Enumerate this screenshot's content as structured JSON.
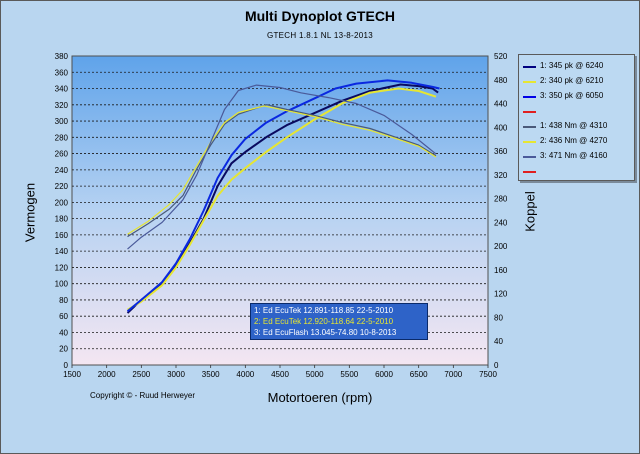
{
  "chart_data": {
    "type": "line",
    "title": "Multi Dynoplot GTECH",
    "subtitle": "GTECH 1.8.1 NL     13-8-2013",
    "xlabel": "Motortoeren (rpm)",
    "ylabel_left": "Vermogen",
    "ylabel_right": "Koppel",
    "xlim": [
      1500,
      7500
    ],
    "ylim_left": [
      0,
      380
    ],
    "ylim_right": [
      0,
      520
    ],
    "x_ticks": [
      "1500",
      "2000",
      "2500",
      "3000",
      "3500",
      "4000",
      "4500",
      "5000",
      "5500",
      "6000",
      "6500",
      "7000",
      "7500"
    ],
    "y_left_ticks": [
      "0",
      "20",
      "40",
      "60",
      "80",
      "100",
      "120",
      "140",
      "160",
      "180",
      "200",
      "220",
      "240",
      "260",
      "280",
      "300",
      "320",
      "340",
      "360",
      "380"
    ],
    "y_right_ticks": [
      "0",
      "40",
      "80",
      "120",
      "160",
      "200",
      "240",
      "280",
      "320",
      "360",
      "400",
      "440",
      "480",
      "520"
    ],
    "grid": true,
    "legend_position": "right",
    "legend": [
      {
        "label": "1: 345 pk @ 6240",
        "color": "#000080"
      },
      {
        "label": "2: 340 pk @ 6210",
        "color": "#e6e632"
      },
      {
        "label": "3: 350 pk @ 6050",
        "color": "#0000e6"
      },
      {
        "label": "",
        "color": "#e02020"
      },
      {
        "label": "1: 438 Nm @ 4310",
        "color": "#4a5a7a"
      },
      {
        "label": "2: 436 Nm @ 4270",
        "color": "#e6e632"
      },
      {
        "label": "3: 471 Nm @ 4160",
        "color": "#4a5a9a"
      },
      {
        "label": "",
        "color": "#e02020"
      }
    ],
    "series": [
      {
        "axis": "left",
        "color": "#0a0a60",
        "width": 2,
        "points": [
          [
            2300,
            64
          ],
          [
            2500,
            80
          ],
          [
            2800,
            100
          ],
          [
            3000,
            122
          ],
          [
            3200,
            150
          ],
          [
            3400,
            180
          ],
          [
            3600,
            220
          ],
          [
            3800,
            248
          ],
          [
            4000,
            262
          ],
          [
            4300,
            280
          ],
          [
            4600,
            295
          ],
          [
            5000,
            310
          ],
          [
            5400,
            325
          ],
          [
            5800,
            337
          ],
          [
            6240,
            345
          ],
          [
            6500,
            343
          ],
          [
            6700,
            340
          ],
          [
            6780,
            335
          ]
        ]
      },
      {
        "axis": "left",
        "color": "#e6e632",
        "width": 2,
        "points": [
          [
            2300,
            68
          ],
          [
            2500,
            78
          ],
          [
            2800,
            98
          ],
          [
            3000,
            120
          ],
          [
            3200,
            148
          ],
          [
            3400,
            178
          ],
          [
            3600,
            208
          ],
          [
            3800,
            228
          ],
          [
            4000,
            242
          ],
          [
            4300,
            262
          ],
          [
            4600,
            280
          ],
          [
            5000,
            302
          ],
          [
            5400,
            322
          ],
          [
            5800,
            335
          ],
          [
            6210,
            340
          ],
          [
            6500,
            337
          ],
          [
            6750,
            330
          ]
        ]
      },
      {
        "axis": "left",
        "color": "#0a28e0",
        "width": 2,
        "points": [
          [
            2300,
            66
          ],
          [
            2500,
            80
          ],
          [
            2800,
            102
          ],
          [
            3000,
            125
          ],
          [
            3200,
            155
          ],
          [
            3400,
            190
          ],
          [
            3600,
            230
          ],
          [
            3800,
            258
          ],
          [
            4000,
            278
          ],
          [
            4300,
            298
          ],
          [
            4600,
            312
          ],
          [
            5000,
            328
          ],
          [
            5300,
            340
          ],
          [
            5600,
            346
          ],
          [
            6050,
            350
          ],
          [
            6400,
            347
          ],
          [
            6700,
            342
          ],
          [
            6800,
            340
          ]
        ]
      },
      {
        "axis": "right",
        "color": "#4a5a7a",
        "width": 1.2,
        "points": [
          [
            2300,
            216
          ],
          [
            2600,
            238
          ],
          [
            2900,
            262
          ],
          [
            3100,
            285
          ],
          [
            3300,
            330
          ],
          [
            3500,
            370
          ],
          [
            3700,
            405
          ],
          [
            3900,
            422
          ],
          [
            4310,
            438
          ],
          [
            4600,
            430
          ],
          [
            5000,
            420
          ],
          [
            5400,
            408
          ],
          [
            5800,
            398
          ],
          [
            6200,
            382
          ],
          [
            6500,
            370
          ],
          [
            6750,
            352
          ]
        ]
      },
      {
        "axis": "right",
        "color": "#e6e632",
        "width": 1.2,
        "points": [
          [
            2300,
            220
          ],
          [
            2600,
            242
          ],
          [
            2900,
            270
          ],
          [
            3100,
            295
          ],
          [
            3300,
            335
          ],
          [
            3500,
            375
          ],
          [
            3700,
            408
          ],
          [
            3900,
            425
          ],
          [
            4270,
            436
          ],
          [
            4600,
            428
          ],
          [
            5000,
            418
          ],
          [
            5400,
            405
          ],
          [
            5800,
            395
          ],
          [
            6200,
            380
          ],
          [
            6500,
            368
          ],
          [
            6750,
            350
          ]
        ]
      },
      {
        "axis": "right",
        "color": "#4a5a9a",
        "width": 1.2,
        "points": [
          [
            2300,
            195
          ],
          [
            2500,
            215
          ],
          [
            2800,
            240
          ],
          [
            3100,
            278
          ],
          [
            3300,
            320
          ],
          [
            3500,
            375
          ],
          [
            3700,
            430
          ],
          [
            3900,
            462
          ],
          [
            4160,
            471
          ],
          [
            4500,
            467
          ],
          [
            4800,
            458
          ],
          [
            5200,
            450
          ],
          [
            5600,
            440
          ],
          [
            6000,
            420
          ],
          [
            6400,
            388
          ],
          [
            6750,
            355
          ]
        ]
      }
    ]
  },
  "runs": [
    {
      "label": "1: Ed EcuTek   12.891-118.85  22-5-2010",
      "color": "#ffffff"
    },
    {
      "label": "2: Ed EcuTek   12.920-118.64  22-5-2010",
      "color": "#e6e632"
    },
    {
      "label": "3: Ed EcuFlash 13.045-74.80   10-8-2013",
      "color": "#ffffff"
    }
  ],
  "copyright": "Copyright © - Ruud Herweyer"
}
